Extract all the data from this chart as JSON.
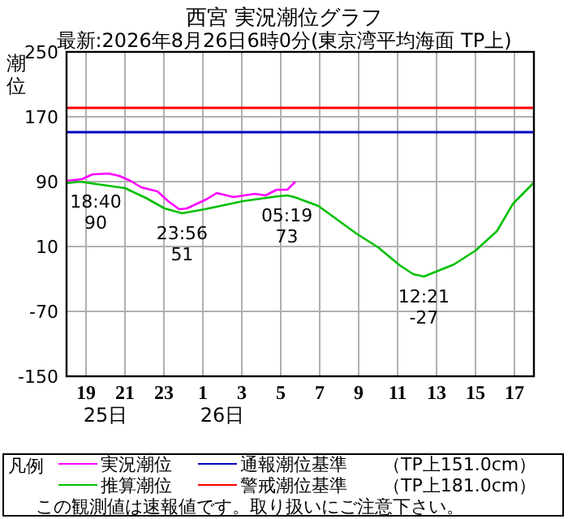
{
  "chart_data": {
    "type": "line",
    "title": "西宮 実況潮位グラフ",
    "subtitle": "最新:2026年8月26日6時0分(東京湾平均海面 TP上)",
    "ylabel": "潮位",
    "legend_title": "凡例",
    "xlim": [
      "2026-08-25T18:00",
      "2026-08-26T18:00"
    ],
    "ylim": [
      -150,
      250
    ],
    "xticks": [
      {
        "value": "2026-08-25T19:00",
        "label": "19"
      },
      {
        "value": "2026-08-25T21:00",
        "label": "21"
      },
      {
        "value": "2026-08-25T23:00",
        "label": "23"
      },
      {
        "value": "2026-08-26T01:00",
        "label": "1"
      },
      {
        "value": "2026-08-26T03:00",
        "label": "3"
      },
      {
        "value": "2026-08-26T05:00",
        "label": "5"
      },
      {
        "value": "2026-08-26T07:00",
        "label": "7"
      },
      {
        "value": "2026-08-26T09:00",
        "label": "9"
      },
      {
        "value": "2026-08-26T11:00",
        "label": "11"
      },
      {
        "value": "2026-08-26T13:00",
        "label": "13"
      },
      {
        "value": "2026-08-26T15:00",
        "label": "15"
      },
      {
        "value": "2026-08-26T17:00",
        "label": "17"
      }
    ],
    "yticks": [
      250,
      170,
      90,
      10,
      -70,
      -150
    ],
    "grid": true,
    "legend": "bottom",
    "series": [
      {
        "name": "推算潮位",
        "color": "#00c000",
        "x": [
          "2026-08-25T18:00",
          "2026-08-25T18:40",
          "2026-08-25T21:00",
          "2026-08-25T22:04",
          "2026-08-25T23:02",
          "2026-08-25T23:56",
          "2026-08-26T01:06",
          "2026-08-26T03:04",
          "2026-08-26T04:52",
          "2026-08-26T05:19",
          "2026-08-26T05:42",
          "2026-08-26T06:56",
          "2026-08-26T08:53",
          "2026-08-26T10:00",
          "2026-08-26T11:06",
          "2026-08-26T11:48",
          "2026-08-26T12:21",
          "2026-08-26T13:54",
          "2026-08-26T15:00",
          "2026-08-26T16:06",
          "2026-08-26T16:56",
          "2026-08-26T18:00"
        ],
        "values": [
          88,
          90,
          82,
          70,
          57,
          51,
          56,
          66,
          72,
          73,
          71,
          60,
          26,
          9,
          -13,
          -24,
          -27,
          -12,
          5,
          29,
          63,
          89
        ]
      },
      {
        "name": "実況潮位",
        "color": "#ff00ff",
        "x": [
          "2026-08-25T18:00",
          "2026-08-25T18:47",
          "2026-08-25T19:20",
          "2026-08-25T20:10",
          "2026-08-25T20:43",
          "2026-08-25T21:17",
          "2026-08-25T21:50",
          "2026-08-25T22:40",
          "2026-08-25T23:13",
          "2026-08-25T23:47",
          "2026-08-26T00:11",
          "2026-08-26T01:10",
          "2026-08-26T01:43",
          "2026-08-26T02:34",
          "2026-08-26T03:07",
          "2026-08-26T03:40",
          "2026-08-26T04:13",
          "2026-08-26T04:47",
          "2026-08-26T05:20",
          "2026-08-26T05:45"
        ],
        "values": [
          91,
          93,
          99,
          100,
          97,
          91,
          83,
          78,
          66,
          56,
          57,
          68,
          76,
          71,
          73,
          75,
          73,
          80,
          80,
          90
        ]
      }
    ],
    "ref_lines": [
      {
        "axis": "y",
        "value": 151,
        "label": "通報潮位基準　　（TP上151.0cm）",
        "color": "#0000c0"
      },
      {
        "axis": "y",
        "value": 181,
        "label": "警戒潮位基準　　（TP上181.0cm）",
        "color": "#ff0000"
      }
    ],
    "annotations": [
      {
        "text": "18:40\n90",
        "x": "2026-08-25T18:40",
        "y": 90
      },
      {
        "text": "23:56\n51",
        "x": "2026-08-25T23:56",
        "y": 51
      },
      {
        "text": "05:19\n73",
        "x": "2026-08-26T05:19",
        "y": 73
      },
      {
        "text": "12:21\n-27",
        "x": "2026-08-26T12:21",
        "y": -27
      },
      "25日",
      "26日",
      "この観測値は速報値です。取り扱いにご注意下さい。"
    ]
  }
}
